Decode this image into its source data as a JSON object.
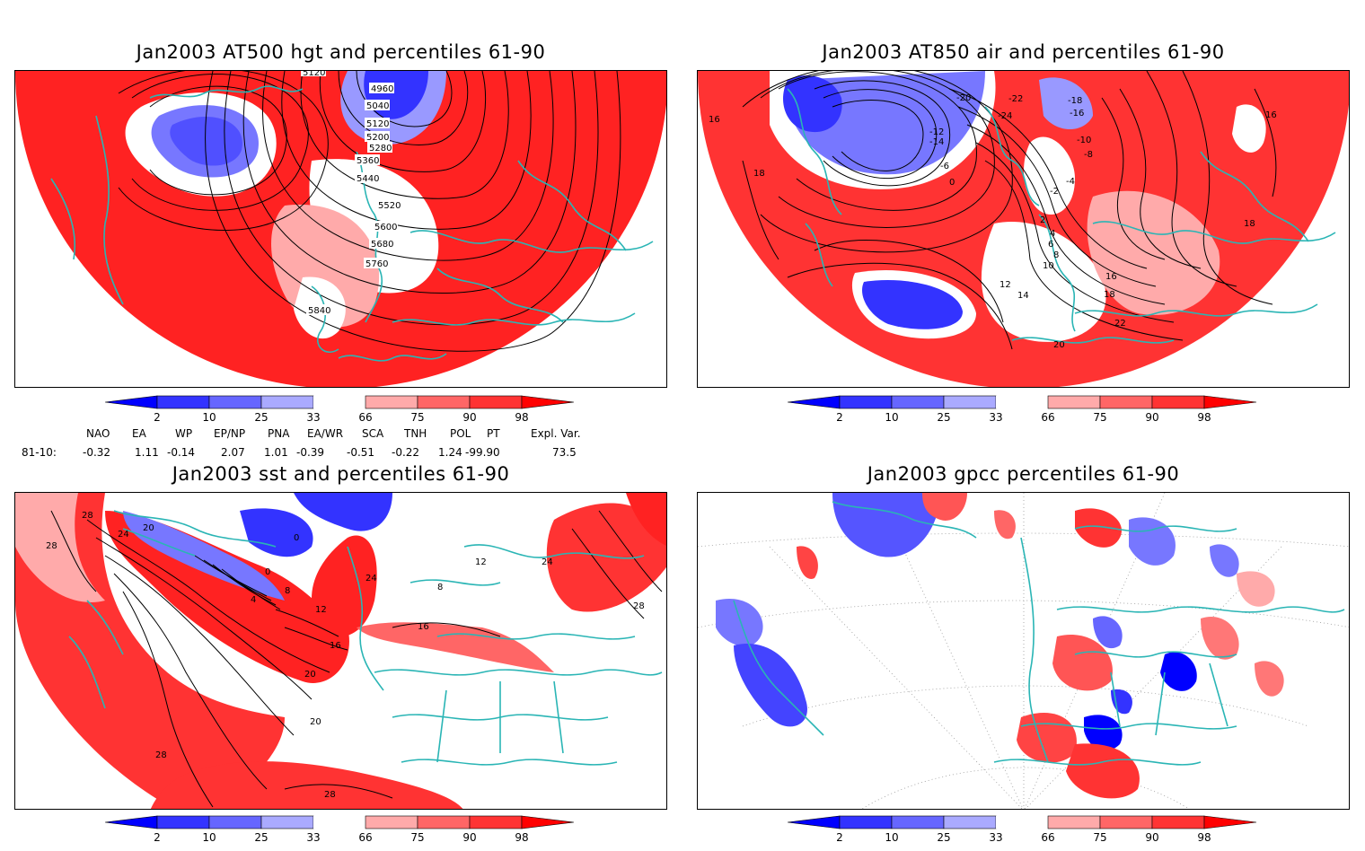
{
  "panels": [
    {
      "id": "hgt",
      "title": "Jan2003 AT500 hgt and percentiles 61-90",
      "contour_labels": [
        "4960",
        "5040",
        "5120",
        "5200",
        "5280",
        "5360",
        "5440",
        "5520",
        "5600",
        "5680",
        "5760",
        "5840",
        "5120"
      ]
    },
    {
      "id": "air",
      "title": "Jan2003 AT850 air and percentiles 61-90",
      "contour_labels": [
        "-20",
        "-24",
        "-22",
        "-18",
        "-16",
        "-14",
        "-12",
        "-10",
        "-8",
        "-6",
        "-4",
        "-2",
        "0",
        "2",
        "4",
        "6",
        "8",
        "10",
        "12",
        "14",
        "16",
        "18",
        "20",
        "22",
        "16",
        "18",
        "16",
        "18"
      ]
    },
    {
      "id": "sst",
      "title": "Jan2003 sst and percentiles 61-90",
      "contour_labels": [
        "28",
        "28",
        "24",
        "20",
        "0",
        "0",
        "4",
        "8",
        "12",
        "16",
        "20",
        "20",
        "24",
        "28",
        "28",
        "28",
        "24",
        "16",
        "12",
        "8"
      ]
    },
    {
      "id": "gpcc",
      "title": "Jan2003 gpcc percentiles 61-90",
      "contour_labels": []
    }
  ],
  "colorbar": {
    "ticks": [
      "2",
      "10",
      "25",
      "33",
      "66",
      "75",
      "90",
      "98"
    ],
    "colors": [
      "#0000ff",
      "#3333ff",
      "#6666ff",
      "#aaaaff",
      "#ffffff",
      "#ffaaaa",
      "#ff6666",
      "#ff3333",
      "#ff0000"
    ]
  },
  "indices": {
    "row_label": "81-10:",
    "names": [
      "NAO",
      "EA",
      "WP",
      "EP/NP",
      "PNA",
      "EA/WR",
      "SCA",
      "TNH",
      "POL",
      "PT",
      "Expl. Var."
    ],
    "values": [
      "-0.32",
      "1.11",
      "-0.14",
      "2.07",
      "1.01",
      "-0.39",
      "-0.51",
      "-0.22",
      "1.24",
      "-99.90",
      "73.5"
    ]
  },
  "colors": {
    "coast": "#2ab5b5",
    "red": "#ff2222",
    "pink": "#ffaaaa",
    "blue": "#2222ee",
    "lightblue": "#9999ff"
  }
}
